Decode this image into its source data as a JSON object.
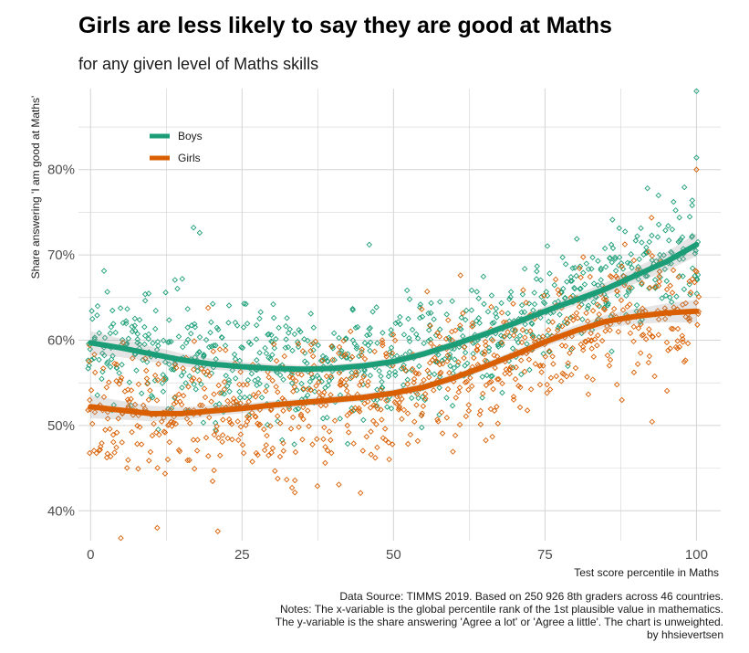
{
  "title": "Girls are less likely to say they are good at Maths",
  "subtitle": "for any given level of Maths skills",
  "caption": {
    "line1": "Data Source: TIMMS 2019. Based on 250 926 8th graders across 46 countries.",
    "line2": "Notes: The x-variable is the global percentile rank of the 1st plausible value in mathematics.",
    "line3": "The y-variable is the share answering 'Agree a lot' or 'Agree a little'. The chart is unweighted.",
    "line4": "by hhsievertsen"
  },
  "colors": {
    "boys": "#1b9e77",
    "girls": "#d95f02",
    "grid": "#d4d4d4"
  },
  "chart_data": {
    "type": "scatter",
    "title": "Girls are less likely to say they are good at Maths",
    "subtitle": "for any given level of Maths skills",
    "xlabel": "Test score percentile in Maths",
    "ylabel": "Share answering 'I am good at Maths'",
    "xlim": [
      -2,
      104
    ],
    "ylim": [
      36.5,
      89.5
    ],
    "x_ticks": [
      0,
      25,
      50,
      75,
      100
    ],
    "x_tick_labels": [
      "0",
      "25",
      "50",
      "75",
      "100"
    ],
    "y_ticks": [
      40,
      50,
      60,
      70,
      80
    ],
    "y_tick_labels": [
      "40%",
      "50%",
      "60%",
      "70%",
      "80%"
    ],
    "grid": true,
    "legend_position": "top-left",
    "point_shape": "open-diamond",
    "series": [
      {
        "name": "Boys",
        "color": "#1b9e77",
        "smooth": {
          "x": [
            0,
            5,
            10,
            15,
            20,
            25,
            30,
            35,
            40,
            45,
            50,
            55,
            60,
            65,
            70,
            75,
            80,
            85,
            90,
            95,
            100
          ],
          "y": [
            59.7,
            59.1,
            58.4,
            57.7,
            57.2,
            56.9,
            56.7,
            56.6,
            56.7,
            57.0,
            57.5,
            58.4,
            59.5,
            60.7,
            62.0,
            63.4,
            64.7,
            66.0,
            67.6,
            69.2,
            71.2
          ]
        },
        "points_per_percentile": 8,
        "points_noise_sd": 3.4
      },
      {
        "name": "Girls",
        "color": "#d95f02",
        "smooth": {
          "x": [
            0,
            5,
            10,
            15,
            20,
            25,
            30,
            35,
            40,
            45,
            50,
            55,
            60,
            65,
            70,
            75,
            80,
            85,
            90,
            95,
            100
          ],
          "y": [
            52.2,
            51.8,
            51.4,
            51.4,
            51.7,
            52.0,
            52.4,
            52.7,
            53.0,
            53.3,
            53.8,
            54.5,
            55.6,
            56.9,
            58.3,
            59.8,
            61.1,
            62.2,
            62.8,
            63.2,
            63.4
          ]
        },
        "points_per_percentile": 8,
        "points_noise_sd": 3.9
      }
    ],
    "annotated_points": [
      {
        "series": "Boys",
        "x": 100,
        "y": 89.2
      },
      {
        "series": "Boys",
        "x": 100,
        "y": 81.4
      },
      {
        "series": "Girls",
        "x": 100,
        "y": 80.0
      },
      {
        "series": "Boys",
        "x": 17,
        "y": 73.2
      },
      {
        "series": "Boys",
        "x": 18,
        "y": 72.6
      },
      {
        "series": "Boys",
        "x": 46,
        "y": 71.2
      },
      {
        "series": "Girls",
        "x": 5,
        "y": 36.8
      },
      {
        "series": "Girls",
        "x": 21,
        "y": 37.6
      },
      {
        "series": "Girls",
        "x": 11,
        "y": 38.0
      }
    ]
  }
}
